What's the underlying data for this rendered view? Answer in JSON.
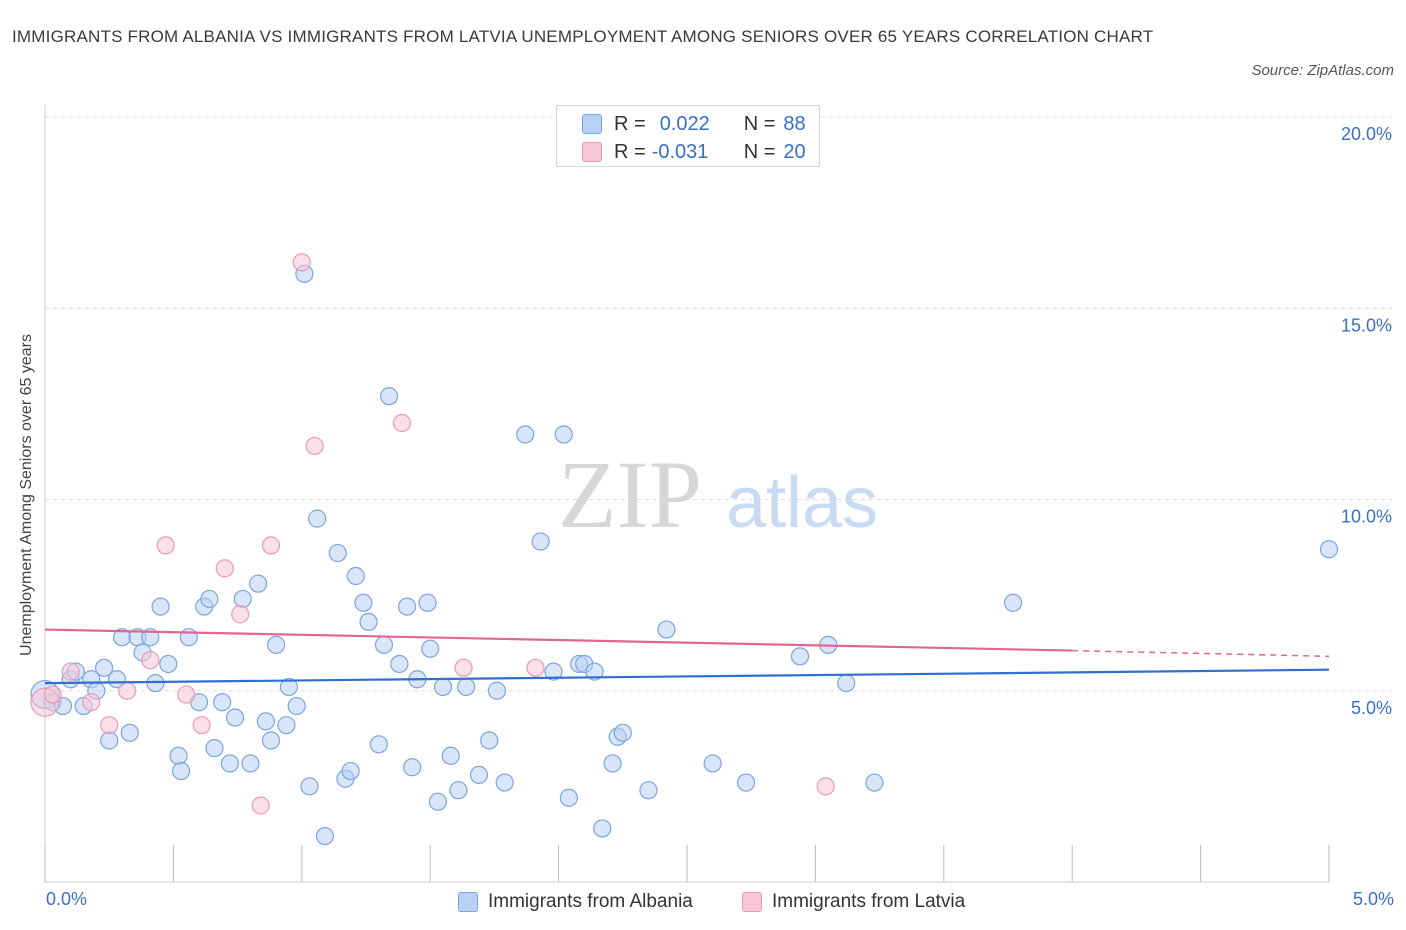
{
  "title": "IMMIGRANTS FROM ALBANIA VS IMMIGRANTS FROM LATVIA UNEMPLOYMENT AMONG SENIORS OVER 65 YEARS CORRELATION CHART",
  "source": "Source: ZipAtlas.com",
  "watermark": {
    "zip": "ZIP",
    "atlas": "atlas"
  },
  "colors": {
    "blue_fill": "#b9d1f4",
    "blue_stroke": "#7aa5e0",
    "blue_line": "#2f6fcf",
    "pink_fill": "#f8c6d6",
    "pink_stroke": "#e99ab4",
    "pink_line": "#e06690",
    "axis_text": "#3a6fc4",
    "grid": "#dcdcdc"
  },
  "legend": {
    "rows": [
      {
        "r_label": "R =",
        "r_value": "0.022",
        "n_label": "N =",
        "n_value": "88",
        "series": "albania"
      },
      {
        "r_label": "R =",
        "r_value": "-0.031",
        "n_label": "N =",
        "n_value": "20",
        "series": "latvia"
      }
    ]
  },
  "bottom_legend": {
    "albania": "Immigrants from Albania",
    "latvia": "Immigrants from Latvia"
  },
  "chart_data": {
    "type": "scatter",
    "title": "IMMIGRANTS FROM ALBANIA VS IMMIGRANTS FROM LATVIA UNEMPLOYMENT AMONG SENIORS OVER 65 YEARS CORRELATION CHART",
    "xlabel": "",
    "ylabel": "Unemployment Among Seniors over 65 years",
    "xlim": [
      0,
      5
    ],
    "ylim": [
      0,
      20
    ],
    "x_tick_labels": [
      "0.0%",
      "5.0%"
    ],
    "y_ticks": [
      5,
      10,
      15,
      20
    ],
    "y_tick_labels": [
      "5.0%",
      "10.0%",
      "15.0%",
      "20.0%"
    ],
    "grid": true,
    "series": [
      {
        "name": "Immigrants from Albania",
        "color": "blue",
        "trend": {
          "x": [
            0,
            5
          ],
          "y": [
            5.2,
            5.55
          ]
        },
        "points": [
          [
            0.0,
            4.9
          ],
          [
            0.03,
            4.7
          ],
          [
            0.07,
            4.6
          ],
          [
            0.1,
            5.3
          ],
          [
            0.12,
            5.5
          ],
          [
            0.15,
            4.6
          ],
          [
            0.18,
            5.3
          ],
          [
            0.2,
            5.0
          ],
          [
            0.23,
            5.6
          ],
          [
            0.25,
            3.7
          ],
          [
            0.28,
            5.3
          ],
          [
            0.3,
            6.4
          ],
          [
            0.33,
            3.9
          ],
          [
            0.36,
            6.4
          ],
          [
            0.38,
            6.0
          ],
          [
            0.41,
            6.4
          ],
          [
            0.43,
            5.2
          ],
          [
            0.45,
            7.2
          ],
          [
            0.48,
            5.7
          ],
          [
            0.52,
            3.3
          ],
          [
            0.53,
            2.9
          ],
          [
            0.56,
            6.4
          ],
          [
            0.6,
            4.7
          ],
          [
            0.62,
            7.2
          ],
          [
            0.64,
            7.4
          ],
          [
            0.66,
            3.5
          ],
          [
            0.69,
            4.7
          ],
          [
            0.72,
            3.1
          ],
          [
            0.74,
            4.3
          ],
          [
            0.77,
            7.4
          ],
          [
            0.8,
            3.1
          ],
          [
            0.83,
            7.8
          ],
          [
            0.86,
            4.2
          ],
          [
            0.88,
            3.7
          ],
          [
            0.9,
            6.2
          ],
          [
            0.94,
            4.1
          ],
          [
            0.95,
            5.1
          ],
          [
            0.98,
            4.6
          ],
          [
            1.01,
            15.9
          ],
          [
            1.03,
            2.5
          ],
          [
            1.06,
            9.5
          ],
          [
            1.09,
            1.2
          ],
          [
            1.14,
            8.6
          ],
          [
            1.17,
            2.7
          ],
          [
            1.19,
            2.9
          ],
          [
            1.21,
            8.0
          ],
          [
            1.24,
            7.3
          ],
          [
            1.26,
            6.8
          ],
          [
            1.3,
            3.6
          ],
          [
            1.32,
            6.2
          ],
          [
            1.34,
            12.7
          ],
          [
            1.38,
            5.7
          ],
          [
            1.41,
            7.2
          ],
          [
            1.43,
            3.0
          ],
          [
            1.45,
            5.3
          ],
          [
            1.49,
            7.3
          ],
          [
            1.5,
            6.1
          ],
          [
            1.53,
            2.1
          ],
          [
            1.55,
            5.1
          ],
          [
            1.58,
            3.3
          ],
          [
            1.61,
            2.4
          ],
          [
            1.64,
            5.1
          ],
          [
            1.69,
            2.8
          ],
          [
            1.73,
            3.7
          ],
          [
            1.76,
            5.0
          ],
          [
            1.79,
            2.6
          ],
          [
            1.87,
            11.7
          ],
          [
            1.93,
            8.9
          ],
          [
            1.98,
            5.5
          ],
          [
            2.02,
            11.7
          ],
          [
            2.04,
            2.2
          ],
          [
            2.08,
            5.7
          ],
          [
            2.1,
            5.7
          ],
          [
            2.14,
            5.5
          ],
          [
            2.17,
            1.4
          ],
          [
            2.21,
            3.1
          ],
          [
            2.23,
            3.8
          ],
          [
            2.25,
            3.9
          ],
          [
            2.35,
            2.4
          ],
          [
            2.42,
            6.6
          ],
          [
            2.6,
            3.1
          ],
          [
            2.73,
            2.6
          ],
          [
            2.94,
            5.9
          ],
          [
            3.05,
            6.2
          ],
          [
            3.12,
            5.2
          ],
          [
            3.23,
            2.6
          ],
          [
            3.77,
            7.3
          ],
          [
            5.0,
            8.7
          ]
        ]
      },
      {
        "name": "Immigrants from Latvia",
        "color": "pink",
        "trend": {
          "x": [
            0,
            4.0
          ],
          "y": [
            6.6,
            6.05
          ]
        },
        "trend_dashed": {
          "x": [
            4.0,
            5.0
          ],
          "y": [
            6.05,
            5.9
          ]
        },
        "points": [
          [
            0.0,
            4.7
          ],
          [
            0.03,
            4.9
          ],
          [
            0.1,
            5.5
          ],
          [
            0.18,
            4.7
          ],
          [
            0.25,
            4.1
          ],
          [
            0.32,
            5.0
          ],
          [
            0.41,
            5.8
          ],
          [
            0.47,
            8.8
          ],
          [
            0.55,
            4.9
          ],
          [
            0.61,
            4.1
          ],
          [
            0.7,
            8.2
          ],
          [
            0.76,
            7.0
          ],
          [
            0.84,
            2.0
          ],
          [
            0.88,
            8.8
          ],
          [
            1.0,
            16.2
          ],
          [
            1.05,
            11.4
          ],
          [
            1.39,
            12.0
          ],
          [
            1.63,
            5.6
          ],
          [
            1.91,
            5.6
          ],
          [
            3.04,
            2.5
          ]
        ]
      }
    ]
  }
}
